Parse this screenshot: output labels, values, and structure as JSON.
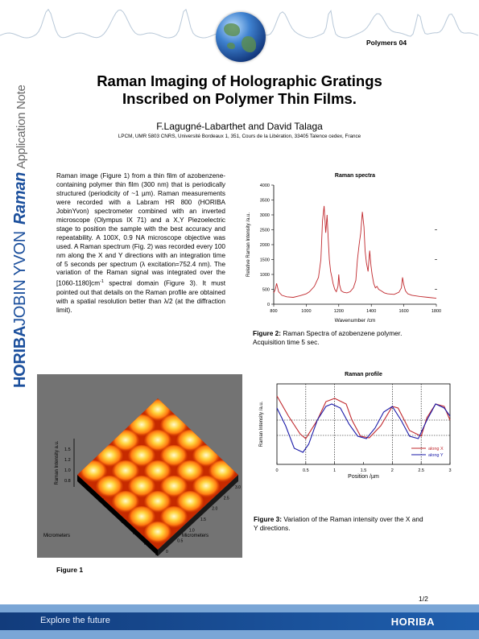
{
  "header": {
    "series": "Polymers 04"
  },
  "side_brand": {
    "part1": "HORIBA",
    "part2": "JOBIN YVON",
    "part3": "Raman",
    "part4": "Application Note"
  },
  "title_line1": "Raman Imaging of Holographic Gratings",
  "title_line2": "Inscribed on Polymer Thin Films.",
  "authors": "F.Lagugné-Labarthet and David Talaga",
  "affiliation": "LPCM, UMR 5803 CNRS, Université Bordeaux 1, 351, Cours de la Libération, 33405 Talence cedex, France",
  "body": {
    "part1": "Raman image (Figure 1) from a thin film of azobenzene-containing polymer thin film (300 nm) that is periodically structured (periodicity of ~1 µm). Raman measurements were recorded with a Labram HR 800 (HORIBA JobinYvon) spectrometer combined with an inverted microscope (Olympus IX 71) and a X,Y Piezoelectric stage to position the sample with the best accuracy and repeatability. A 100X, 0.9 NA microscope objective was used. A Raman spectrum (Fig. 2) was recorded every 100 nm along the X and Y directions with an integration time of 5 seconds per spectrum (λ excitation=752.4 nm). The variation of the Raman signal was integrated over the [1060-1180]cm",
    "superscript": "-1",
    "part2": " spectral domain (Figure 3). It must pointed out that details on the Raman profile are obtained with a spatial resolution better than λ/2 (at the diffraction limit)."
  },
  "figure2_caption": {
    "label": "Figure 2:",
    "text": " Raman Spectra of azobenzene polymer. Acquisition time 5 sec."
  },
  "figure3_caption": {
    "label": "Figure 3:",
    "text": " Variation of the Raman intensity over the X and Y directions."
  },
  "figure1_label": "Figure 1",
  "figure1_axes": {
    "z_label": "Raman Intensity a.u.",
    "x_label": "Micrometers",
    "y_label": "Micrometers",
    "z_ticks": [
      "1.5",
      "1.2",
      "1.0",
      "0.8"
    ],
    "x_ticks": [
      "0",
      "0.5",
      "1",
      "1.5",
      "2",
      "2.5",
      "3"
    ],
    "y_ticks": [
      "3.0",
      "2.5",
      "2.0",
      "1.5",
      "1.0",
      "0.5",
      "0"
    ]
  },
  "page_number": "1/2",
  "footer": {
    "slogan": "Explore the future",
    "logo": "HORIBA"
  },
  "colors": {
    "brand_blue": "#1b4f9c",
    "spectrum_line": "#c0282d",
    "profile_x": "#c0282d",
    "profile_y": "#1a1aa8"
  },
  "chart_data": [
    {
      "type": "line",
      "title": "Raman spectra",
      "xlabel": "Wavenumber /cm",
      "ylabel": "Relative Raman Intensity /a.u.",
      "xlim": [
        800,
        1800
      ],
      "ylim": [
        0,
        4000
      ],
      "xticks": [
        800,
        1000,
        1200,
        1400,
        1600,
        1800
      ],
      "yticks": [
        0,
        500,
        1000,
        1500,
        2000,
        2500,
        3000,
        3500,
        4000
      ],
      "series": [
        {
          "x": [
            800,
            810,
            818,
            830,
            850,
            880,
            920,
            960,
            1000,
            1020,
            1050,
            1075,
            1090,
            1100,
            1110,
            1120,
            1128,
            1135,
            1142,
            1150,
            1158,
            1165,
            1175,
            1185,
            1195,
            1200,
            1205,
            1215,
            1230,
            1250,
            1270,
            1290,
            1305,
            1315,
            1325,
            1335,
            1345,
            1355,
            1362,
            1370,
            1380,
            1390,
            1398,
            1405,
            1415,
            1425,
            1435,
            1445,
            1460,
            1480,
            1500,
            1540,
            1570,
            1585,
            1592,
            1600,
            1610,
            1625,
            1650,
            1700,
            1750,
            1800
          ],
          "y": [
            380,
            500,
            700,
            420,
            300,
            250,
            230,
            280,
            350,
            420,
            600,
            900,
            1500,
            2800,
            3300,
            2400,
            3000,
            2200,
            1500,
            1100,
            900,
            700,
            500,
            420,
            600,
            1000,
            650,
            450,
            400,
            380,
            420,
            550,
            800,
            1500,
            2000,
            2400,
            3100,
            2600,
            1800,
            1400,
            1100,
            1800,
            1300,
            1000,
            700,
            550,
            600,
            500,
            450,
            380,
            350,
            330,
            400,
            550,
            900,
            650,
            450,
            350,
            300,
            260,
            230,
            200
          ]
        }
      ]
    },
    {
      "type": "line",
      "title": "Raman profile",
      "xlabel": "Position /µm",
      "ylabel": "Raman Intensity /a.u.",
      "xlim": [
        0,
        3
      ],
      "xticks": [
        "0",
        "0.5",
        "1",
        "1.5",
        "2",
        "2.5",
        "3"
      ],
      "series": [
        {
          "name": "along X",
          "x": [
            0,
            0.2,
            0.4,
            0.5,
            0.7,
            0.85,
            1.0,
            1.2,
            1.3,
            1.45,
            1.6,
            1.8,
            2.0,
            2.1,
            2.3,
            2.5,
            2.6,
            2.75,
            2.9,
            3.0
          ],
          "y": [
            0.85,
            0.6,
            0.38,
            0.32,
            0.55,
            0.78,
            0.82,
            0.75,
            0.55,
            0.35,
            0.33,
            0.48,
            0.72,
            0.7,
            0.42,
            0.35,
            0.58,
            0.75,
            0.72,
            0.55
          ]
        },
        {
          "name": "along Y",
          "x": [
            0,
            0.15,
            0.3,
            0.45,
            0.55,
            0.7,
            0.85,
            0.95,
            1.1,
            1.25,
            1.4,
            1.55,
            1.7,
            1.85,
            2.0,
            2.15,
            2.3,
            2.45,
            2.6,
            2.75,
            2.9,
            3.0
          ],
          "y": [
            0.7,
            0.48,
            0.2,
            0.15,
            0.25,
            0.55,
            0.72,
            0.75,
            0.7,
            0.5,
            0.35,
            0.32,
            0.45,
            0.65,
            0.72,
            0.55,
            0.35,
            0.32,
            0.55,
            0.75,
            0.7,
            0.6
          ]
        }
      ]
    }
  ]
}
